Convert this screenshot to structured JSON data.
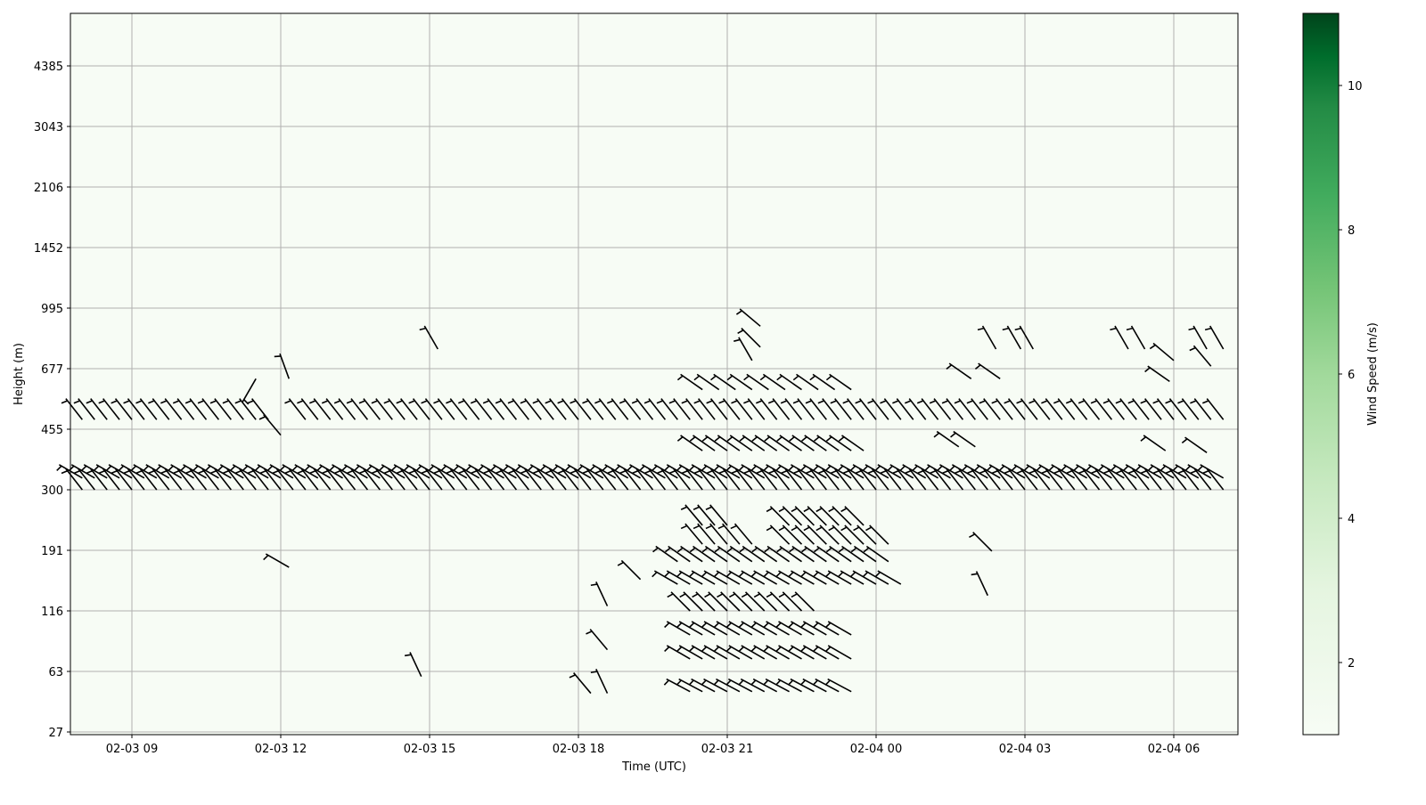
{
  "chart_data": {
    "type": "heatmap",
    "subtype": "wind-barbs-over-speed-heatmap",
    "title": "",
    "xlabel": "Time (UTC)",
    "ylabel": "Height (m)",
    "x_ticks": [
      "02-03 09",
      "02-03 12",
      "02-03 15",
      "02-03 18",
      "02-03 21",
      "02-04 00",
      "02-04 03",
      "02-04 06"
    ],
    "x_tick_times": [
      "02-03 09:00",
      "02-03 12:00",
      "02-03 15:00",
      "02-03 18:00",
      "02-03 21:00",
      "02-04 00:00",
      "02-04 03:00",
      "02-04 06:00"
    ],
    "xlim": [
      "02-03 07:45",
      "02-04 07:15"
    ],
    "y_ticks": [
      27,
      63,
      116,
      191,
      300,
      455,
      677,
      995,
      1452,
      2106,
      3043,
      4385
    ],
    "y_scale": "range-gate index (evenly spaced tick labels)",
    "grid": true,
    "heatmap_background_speed": 1.2,
    "colorbar": {
      "label": "Wind Speed (m/s)",
      "ticks": [
        2,
        4,
        6,
        8,
        10
      ],
      "range": [
        1,
        11
      ],
      "colormap": "Greens",
      "low_color": "#f7fcf5",
      "high_color": "#00441b"
    },
    "barb_color": "#000000",
    "barb_groups": [
      {
        "height": 300,
        "start": "02-03 07:45",
        "end": "02-04 07:00",
        "step_min": 15,
        "direction": 322,
        "speed": 3
      },
      {
        "height": 330,
        "start": "02-03 07:45",
        "end": "02-04 07:00",
        "step_min": 15,
        "direction": 300,
        "speed": 3
      },
      {
        "height": 490,
        "start": "02-03 07:45",
        "end": "02-03 11:45",
        "step_min": 15,
        "direction": 322,
        "speed": 3
      },
      {
        "height": 490,
        "start": "02-03 12:30",
        "end": "02-04 07:00",
        "step_min": 15,
        "direction": 322,
        "speed": 3
      },
      {
        "height": 600,
        "start": "02-03 20:30",
        "end": "02-03 23:30",
        "step_min": 20,
        "direction": 305,
        "speed": 3
      },
      {
        "height": 400,
        "start": "02-03 20:30",
        "end": "02-03 23:45",
        "step_min": 15,
        "direction": 305,
        "speed": 3
      },
      {
        "height": 236,
        "start": "02-03 20:30",
        "end": "02-03 21:00",
        "step_min": 15,
        "direction": 320,
        "speed": 3
      },
      {
        "height": 236,
        "start": "02-03 22:15",
        "end": "02-03 23:45",
        "step_min": 15,
        "direction": 315,
        "speed": 3
      },
      {
        "height": 202,
        "start": "02-03 20:30",
        "end": "02-03 21:30",
        "step_min": 15,
        "direction": 320,
        "speed": 3
      },
      {
        "height": 202,
        "start": "02-03 22:15",
        "end": "02-04 00:15",
        "step_min": 15,
        "direction": 315,
        "speed": 3
      },
      {
        "height": 177,
        "start": "02-03 20:00",
        "end": "02-04 00:15",
        "step_min": 15,
        "direction": 305,
        "speed": 3
      },
      {
        "height": 149,
        "start": "02-03 20:00",
        "end": "02-04 00:30",
        "step_min": 15,
        "direction": 300,
        "speed": 3
      },
      {
        "height": 116,
        "start": "02-03 20:15",
        "end": "02-03 22:45",
        "step_min": 15,
        "direction": 315,
        "speed": 3
      },
      {
        "height": 95,
        "start": "02-03 20:15",
        "end": "02-03 23:30",
        "step_min": 15,
        "direction": 300,
        "speed": 3
      },
      {
        "height": 74,
        "start": "02-03 20:15",
        "end": "02-03 23:30",
        "step_min": 15,
        "direction": 300,
        "speed": 3
      },
      {
        "height": 51,
        "start": "02-03 20:15",
        "end": "02-03 23:30",
        "step_min": 15,
        "direction": 298,
        "speed": 3
      }
    ],
    "barbs": [
      {
        "time": "02-03 11:30",
        "height": 640,
        "direction": 210,
        "speed": 3
      },
      {
        "time": "02-03 12:10",
        "height": 640,
        "direction": 340,
        "speed": 3
      },
      {
        "time": "02-03 12:00",
        "height": 440,
        "direction": 320,
        "speed": 3
      },
      {
        "time": "02-03 12:10",
        "height": 170,
        "direction": 300,
        "speed": 3
      },
      {
        "time": "02-03 15:10",
        "height": 780,
        "direction": 330,
        "speed": 3
      },
      {
        "time": "02-03 14:50",
        "height": 60,
        "direction": 335,
        "speed": 3
      },
      {
        "time": "02-03 18:15",
        "height": 50,
        "direction": 320,
        "speed": 3
      },
      {
        "time": "02-03 18:35",
        "height": 50,
        "direction": 335,
        "speed": 3
      },
      {
        "time": "02-03 18:35",
        "height": 82,
        "direction": 320,
        "speed": 3
      },
      {
        "time": "02-03 18:35",
        "height": 122,
        "direction": 335,
        "speed": 3
      },
      {
        "time": "02-03 19:15",
        "height": 155,
        "direction": 315,
        "speed": 3
      },
      {
        "time": "02-03 21:40",
        "height": 900,
        "direction": 310,
        "speed": 3
      },
      {
        "time": "02-03 21:40",
        "height": 790,
        "direction": 315,
        "speed": 3
      },
      {
        "time": "02-03 21:30",
        "height": 720,
        "direction": 330,
        "speed": 3
      },
      {
        "time": "02-04 02:25",
        "height": 780,
        "direction": 330,
        "speed": 3
      },
      {
        "time": "02-04 02:55",
        "height": 780,
        "direction": 330,
        "speed": 3
      },
      {
        "time": "02-04 03:10",
        "height": 780,
        "direction": 330,
        "speed": 3
      },
      {
        "time": "02-04 05:05",
        "height": 780,
        "direction": 330,
        "speed": 3
      },
      {
        "time": "02-04 05:25",
        "height": 780,
        "direction": 330,
        "speed": 3
      },
      {
        "time": "02-04 06:40",
        "height": 780,
        "direction": 330,
        "speed": 3
      },
      {
        "time": "02-04 07:00",
        "height": 780,
        "direction": 330,
        "speed": 3
      },
      {
        "time": "02-04 06:00",
        "height": 720,
        "direction": 310,
        "speed": 3
      },
      {
        "time": "02-04 06:45",
        "height": 690,
        "direction": 320,
        "speed": 3
      },
      {
        "time": "02-04 01:55",
        "height": 640,
        "direction": 305,
        "speed": 3
      },
      {
        "time": "02-04 02:30",
        "height": 640,
        "direction": 305,
        "speed": 3
      },
      {
        "time": "02-04 05:55",
        "height": 630,
        "direction": 305,
        "speed": 3
      },
      {
        "time": "02-04 01:40",
        "height": 410,
        "direction": 305,
        "speed": 3
      },
      {
        "time": "02-04 02:00",
        "height": 410,
        "direction": 305,
        "speed": 3
      },
      {
        "time": "02-04 05:50",
        "height": 400,
        "direction": 305,
        "speed": 3
      },
      {
        "time": "02-04 06:40",
        "height": 395,
        "direction": 305,
        "speed": 3
      },
      {
        "time": "02-04 02:20",
        "height": 190,
        "direction": 315,
        "speed": 3
      },
      {
        "time": "02-04 02:15",
        "height": 135,
        "direction": 335,
        "speed": 3
      }
    ]
  }
}
